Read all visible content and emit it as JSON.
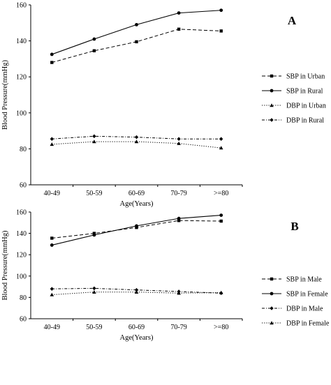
{
  "chart_data": [
    {
      "type": "line",
      "panel_label": "A",
      "categories": [
        "40-49",
        "50-59",
        "60-69",
        "70-79",
        ">=80"
      ],
      "xlabel": "Age(Years)",
      "ylabel": "Blood Pressure(mmHg)",
      "ylim": [
        60,
        160
      ],
      "yticks": [
        "60",
        "80",
        "100",
        "120",
        "140",
        "160"
      ],
      "grid": false,
      "legend_position": "right",
      "series": [
        {
          "name": "SBP in Urban",
          "values": [
            128,
            134.5,
            139.5,
            146.5,
            145.5
          ],
          "marker": "square",
          "dash": "dashed"
        },
        {
          "name": "SBP in Rural",
          "values": [
            132.5,
            141,
            149,
            155.5,
            157
          ],
          "marker": "circle",
          "dash": "solid"
        },
        {
          "name": "DBP in Urban",
          "values": [
            82.5,
            84,
            84,
            83,
            80.5
          ],
          "marker": "triangle",
          "dash": "dotted"
        },
        {
          "name": "DBP in Rural",
          "values": [
            85.5,
            87,
            86.5,
            85.5,
            85.5
          ],
          "marker": "diamond",
          "dash": "dashdot"
        }
      ]
    },
    {
      "type": "line",
      "panel_label": "B",
      "categories": [
        "40-49",
        "50-59",
        "60-69",
        "70-79",
        ">=80"
      ],
      "xlabel": "Age(Years)",
      "ylabel": "Blood Pressure(mmHg)",
      "ylim": [
        60,
        160
      ],
      "yticks": [
        "60",
        "80",
        "100",
        "120",
        "140",
        "160"
      ],
      "grid": false,
      "legend_position": "right",
      "series": [
        {
          "name": "SBP in Male",
          "values": [
            135.5,
            140,
            145.5,
            152,
            151.5
          ],
          "marker": "square",
          "dash": "dashed"
        },
        {
          "name": "SBP in Female",
          "values": [
            129,
            138.5,
            147,
            154,
            157
          ],
          "marker": "circle",
          "dash": "solid"
        },
        {
          "name": "DBP in Male",
          "values": [
            88,
            88.5,
            87,
            85.5,
            84
          ],
          "marker": "diamond",
          "dash": "dashdot"
        },
        {
          "name": "DBP in Female",
          "values": [
            82.5,
            85,
            85,
            84,
            84.5
          ],
          "marker": "triangle",
          "dash": "dotted"
        }
      ]
    }
  ]
}
